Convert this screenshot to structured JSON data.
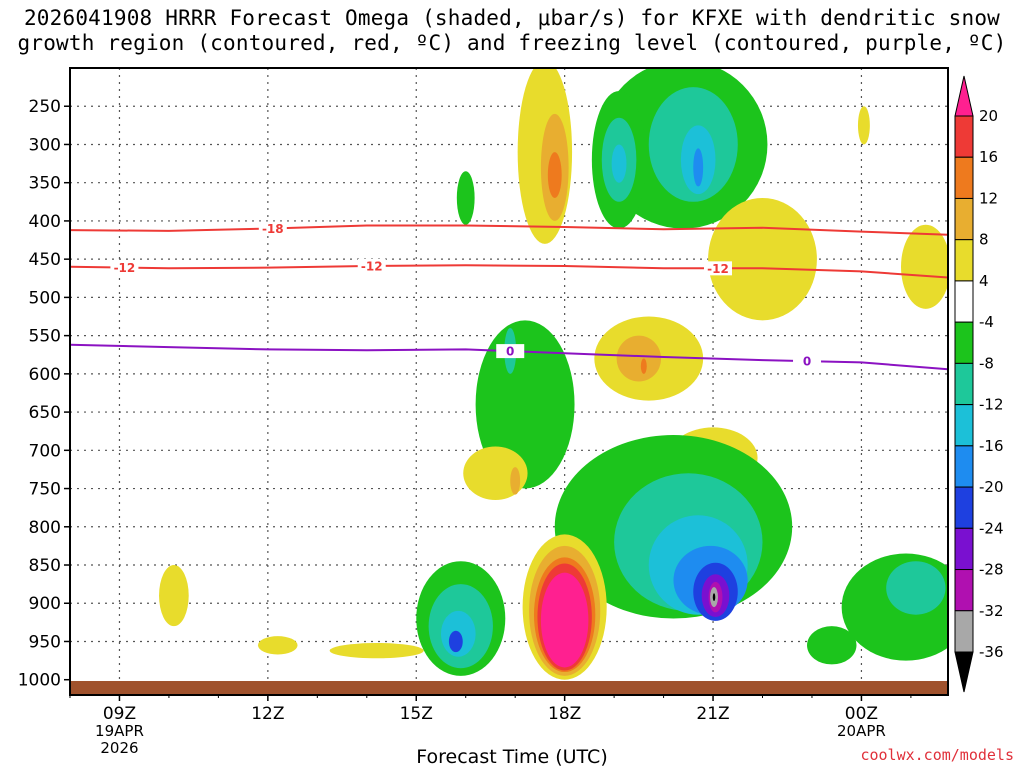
{
  "title": {
    "line1": "2026041908 HRRR Forecast Omega (shaded, μbar/s) for KFXE with dendritic snow",
    "line2": "growth region (contoured, red, ºC) and freezing level (contoured, purple, ºC)"
  },
  "xlabel": "Forecast Time (UTC)",
  "credit": "coolwx.com/models",
  "chart_data": {
    "type": "heatmap",
    "y_axis": {
      "ticks": [
        250,
        300,
        350,
        400,
        450,
        500,
        550,
        600,
        650,
        700,
        750,
        800,
        850,
        900,
        950,
        1000
      ],
      "range": [
        200,
        1020
      ],
      "inverted": true,
      "grid": true
    },
    "x_axis": {
      "ticks": [
        {
          "label": "09Z",
          "sub1": "19APR",
          "sub2": "2026",
          "hours": 1
        },
        {
          "label": "12Z",
          "sub1": "",
          "sub2": "",
          "hours": 4
        },
        {
          "label": "15Z",
          "sub1": "",
          "sub2": "",
          "hours": 7
        },
        {
          "label": "18Z",
          "sub1": "",
          "sub2": "",
          "hours": 10
        },
        {
          "label": "21Z",
          "sub1": "",
          "sub2": "",
          "hours": 13
        },
        {
          "label": "00Z",
          "sub1": "20APR",
          "sub2": "",
          "hours": 16
        }
      ],
      "range_hours": [
        0,
        17.75
      ],
      "grid": true
    },
    "colorbar": {
      "levels": [
        20,
        16,
        12,
        8,
        4,
        -4,
        -8,
        -12,
        -16,
        -20,
        -24,
        -28,
        -32,
        -36
      ],
      "colors": [
        "#ff2090",
        "#ee3a36",
        "#ee7a1e",
        "#e8ae30",
        "#e8dc2c",
        "#ffffff",
        "#1cc41c",
        "#1ec89a",
        "#1cc0d8",
        "#1e8cf0",
        "#1e40e0",
        "#7a10d0",
        "#b010b0",
        "#a8a8a8",
        "#000000"
      ]
    },
    "omega_blobs": [
      {
        "color": "#e8dc2c",
        "cx": 9.6,
        "cy": 310,
        "rx": 0.55,
        "ry": 120
      },
      {
        "color": "#e8ae30",
        "cx": 9.8,
        "cy": 330,
        "rx": 0.28,
        "ry": 70
      },
      {
        "color": "#ee7a1e",
        "cx": 9.8,
        "cy": 340,
        "rx": 0.14,
        "ry": 30
      },
      {
        "color": "#1cc41c",
        "cx": 12.4,
        "cy": 300,
        "rx": 1.7,
        "ry": 110
      },
      {
        "color": "#1ec89a",
        "cx": 12.6,
        "cy": 300,
        "rx": 0.9,
        "ry": 75
      },
      {
        "color": "#1cc0d8",
        "cx": 12.7,
        "cy": 320,
        "rx": 0.35,
        "ry": 45
      },
      {
        "color": "#1e8cf0",
        "cx": 12.7,
        "cy": 330,
        "rx": 0.1,
        "ry": 25
      },
      {
        "color": "#1cc41c",
        "cx": 11.1,
        "cy": 320,
        "rx": 0.55,
        "ry": 90
      },
      {
        "color": "#1ec89a",
        "cx": 11.1,
        "cy": 320,
        "rx": 0.35,
        "ry": 55
      },
      {
        "color": "#1cc0d8",
        "cx": 11.1,
        "cy": 325,
        "rx": 0.15,
        "ry": 25
      },
      {
        "color": "#1cc41c",
        "cx": 8.0,
        "cy": 370,
        "rx": 0.18,
        "ry": 35
      },
      {
        "color": "#e8dc2c",
        "cx": 14.0,
        "cy": 450,
        "rx": 1.1,
        "ry": 80
      },
      {
        "color": "#e8dc2c",
        "cx": 17.3,
        "cy": 460,
        "rx": 0.5,
        "ry": 55
      },
      {
        "color": "#e8dc2c",
        "cx": 16.05,
        "cy": 275,
        "rx": 0.12,
        "ry": 25
      },
      {
        "color": "#e8dc2c",
        "cx": 11.7,
        "cy": 580,
        "rx": 1.1,
        "ry": 55
      },
      {
        "color": "#e8ae30",
        "cx": 11.5,
        "cy": 580,
        "rx": 0.45,
        "ry": 30
      },
      {
        "color": "#ee7a1e",
        "cx": 11.6,
        "cy": 590,
        "rx": 0.06,
        "ry": 10
      },
      {
        "color": "#1cc41c",
        "cx": 9.2,
        "cy": 640,
        "rx": 1.0,
        "ry": 110
      },
      {
        "color": "#1ec89a",
        "cx": 8.9,
        "cy": 570,
        "rx": 0.12,
        "ry": 30
      },
      {
        "color": "#e8dc2c",
        "cx": 13.0,
        "cy": 710,
        "rx": 0.9,
        "ry": 40
      },
      {
        "color": "#e8ae30",
        "cx": 13.1,
        "cy": 710,
        "rx": 0.25,
        "ry": 15
      },
      {
        "color": "#e8dc2c",
        "cx": 8.6,
        "cy": 730,
        "rx": 0.65,
        "ry": 35
      },
      {
        "color": "#e8ae30",
        "cx": 9.0,
        "cy": 740,
        "rx": 0.1,
        "ry": 18
      },
      {
        "color": "#1cc41c",
        "cx": 12.2,
        "cy": 800,
        "rx": 2.4,
        "ry": 120
      },
      {
        "color": "#1ec89a",
        "cx": 12.5,
        "cy": 820,
        "rx": 1.5,
        "ry": 90
      },
      {
        "color": "#1cc0d8",
        "cx": 12.7,
        "cy": 850,
        "rx": 1.0,
        "ry": 65
      },
      {
        "color": "#1e8cf0",
        "cx": 12.95,
        "cy": 870,
        "rx": 0.75,
        "ry": 45
      },
      {
        "color": "#1e40e0",
        "cx": 13.05,
        "cy": 885,
        "rx": 0.45,
        "ry": 38
      },
      {
        "color": "#7a10d0",
        "cx": 13.05,
        "cy": 890,
        "rx": 0.28,
        "ry": 28
      },
      {
        "color": "#b010b0",
        "cx": 13.05,
        "cy": 892,
        "rx": 0.14,
        "ry": 20
      },
      {
        "color": "#a8a8a8",
        "cx": 13.02,
        "cy": 892,
        "rx": 0.08,
        "ry": 13
      },
      {
        "color": "#000000",
        "cx": 13.02,
        "cy": 892,
        "rx": 0.025,
        "ry": 5
      },
      {
        "color": "#1cc41c",
        "cx": 7.9,
        "cy": 920,
        "rx": 0.9,
        "ry": 75
      },
      {
        "color": "#1ec89a",
        "cx": 7.9,
        "cy": 930,
        "rx": 0.65,
        "ry": 55
      },
      {
        "color": "#1cc0d8",
        "cx": 7.85,
        "cy": 940,
        "rx": 0.35,
        "ry": 30
      },
      {
        "color": "#1e40e0",
        "cx": 7.8,
        "cy": 950,
        "rx": 0.14,
        "ry": 14
      },
      {
        "color": "#e8dc2c",
        "cx": 10.0,
        "cy": 905,
        "rx": 0.85,
        "ry": 95
      },
      {
        "color": "#e8ae30",
        "cx": 10.0,
        "cy": 910,
        "rx": 0.72,
        "ry": 85
      },
      {
        "color": "#ee7a1e",
        "cx": 10.0,
        "cy": 915,
        "rx": 0.62,
        "ry": 75
      },
      {
        "color": "#ee3a36",
        "cx": 10.0,
        "cy": 918,
        "rx": 0.55,
        "ry": 70
      },
      {
        "color": "#ff2090",
        "cx": 10.0,
        "cy": 922,
        "rx": 0.48,
        "ry": 62
      },
      {
        "color": "#1cc41c",
        "cx": 16.9,
        "cy": 905,
        "rx": 1.3,
        "ry": 70
      },
      {
        "color": "#1ec89a",
        "cx": 17.1,
        "cy": 880,
        "rx": 0.6,
        "ry": 35
      },
      {
        "color": "#1cc41c",
        "cx": 15.4,
        "cy": 955,
        "rx": 0.5,
        "ry": 25
      },
      {
        "color": "#e8dc2c",
        "cx": 2.1,
        "cy": 890,
        "rx": 0.3,
        "ry": 40
      },
      {
        "color": "#e8dc2c",
        "cx": 4.2,
        "cy": 955,
        "rx": 0.4,
        "ry": 12
      },
      {
        "color": "#e8dc2c",
        "cx": 6.2,
        "cy": 962,
        "rx": 0.95,
        "ry": 10
      }
    ],
    "contours": [
      {
        "name": "-18",
        "color": "#ee3a36",
        "label": "-18",
        "x": [
          0,
          2,
          4,
          6,
          8,
          10,
          12,
          14,
          16,
          17.75
        ],
        "y": [
          412,
          413,
          410,
          406,
          406,
          408,
          411,
          409,
          414,
          418
        ],
        "label_at": [
          4.1
        ]
      },
      {
        "name": "-12",
        "color": "#ee3a36",
        "label": "-12",
        "x": [
          0,
          2,
          4,
          6,
          8,
          10,
          12,
          14,
          16,
          17.75
        ],
        "y": [
          460,
          462,
          461,
          459,
          458,
          459,
          462,
          462,
          466,
          474
        ],
        "label_at": [
          1.1,
          6.1,
          13.1
        ]
      },
      {
        "name": "0",
        "color": "#8b12c2",
        "label": "0",
        "x": [
          0,
          2,
          4,
          6,
          8,
          10,
          12,
          14,
          16,
          17.75
        ],
        "y": [
          562,
          565,
          568,
          569,
          568,
          573,
          578,
          582,
          585,
          594
        ],
        "label_at": [
          8.9,
          14.9
        ]
      }
    ]
  }
}
